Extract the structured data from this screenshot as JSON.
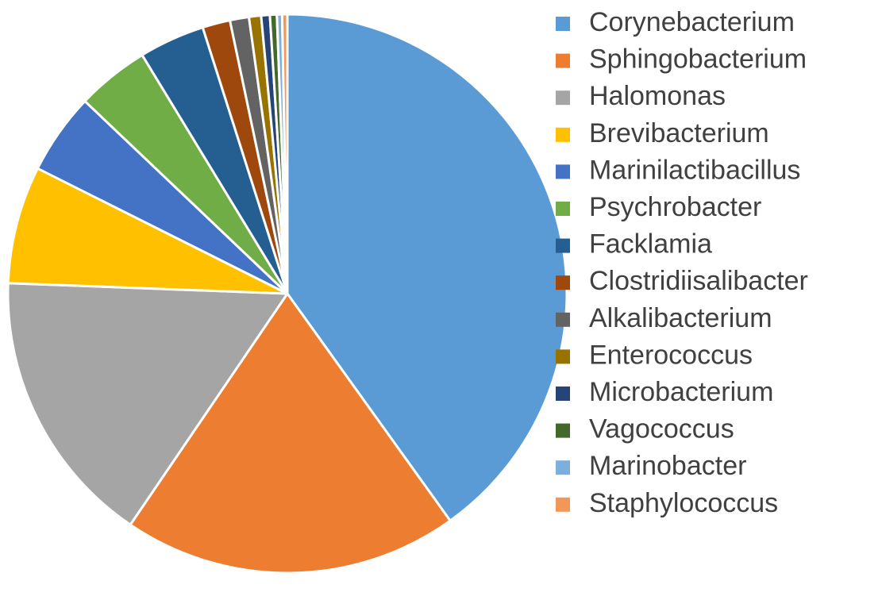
{
  "chart_data": {
    "type": "pie",
    "categories": [
      "Corynebacterium",
      "Sphingobacterium",
      "Halomonas",
      "Brevibacterium",
      "Marinilactibacillus",
      "Psychrobacter",
      "Facklamia",
      "Clostridiisalibacter",
      "Alkalibacterium",
      "Enterococcus",
      "Microbacterium",
      "Vagococcus",
      "Marinobacter",
      "Staphylococcus"
    ],
    "values": [
      40.1,
      19.4,
      16.1,
      6.8,
      4.7,
      4.2,
      3.8,
      1.6,
      1.1,
      0.7,
      0.5,
      0.4,
      0.3,
      0.3
    ],
    "colors": [
      "#5b9bd5",
      "#ed7d31",
      "#a5a5a5",
      "#ffc000",
      "#4472c4",
      "#70ad47",
      "#255e91",
      "#9e480e",
      "#636363",
      "#997300",
      "#264478",
      "#43682b",
      "#7cafdd",
      "#f1975a"
    ],
    "legend": "right"
  }
}
